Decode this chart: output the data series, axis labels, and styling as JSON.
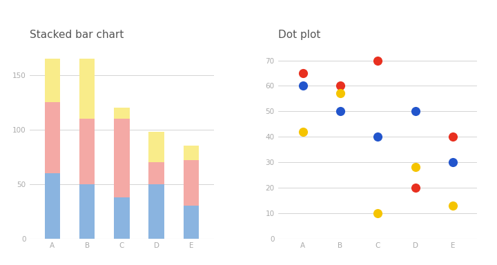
{
  "categories": [
    "A",
    "B",
    "C",
    "D",
    "E"
  ],
  "bar_blue": [
    60,
    50,
    38,
    50,
    30
  ],
  "bar_pink": [
    65,
    60,
    72,
    20,
    42
  ],
  "bar_yellow": [
    40,
    55,
    10,
    28,
    13
  ],
  "dot_blue": [
    60,
    50,
    40,
    50,
    30
  ],
  "dot_red": [
    65,
    60,
    70,
    20,
    40
  ],
  "dot_yellow": [
    42,
    57,
    10,
    28,
    13
  ],
  "bar_color_blue": "#8ab4e0",
  "bar_color_pink": "#f4a9a5",
  "bar_color_yellow": "#f9ec8a",
  "dot_color_blue": "#2255cc",
  "dot_color_red": "#e83020",
  "dot_color_yellow": "#f5c400",
  "title_bar": "Stacked bar chart",
  "title_dot": "Dot plot",
  "bar_yticks": [
    0,
    50,
    100,
    150
  ],
  "dot_yticks": [
    0,
    10,
    20,
    30,
    40,
    50,
    60,
    70
  ],
  "dot_size": 90,
  "background_color": "#ffffff",
  "grid_color": "#cccccc",
  "title_fontsize": 11,
  "tick_fontsize": 7.5,
  "tick_color": "#aaaaaa"
}
